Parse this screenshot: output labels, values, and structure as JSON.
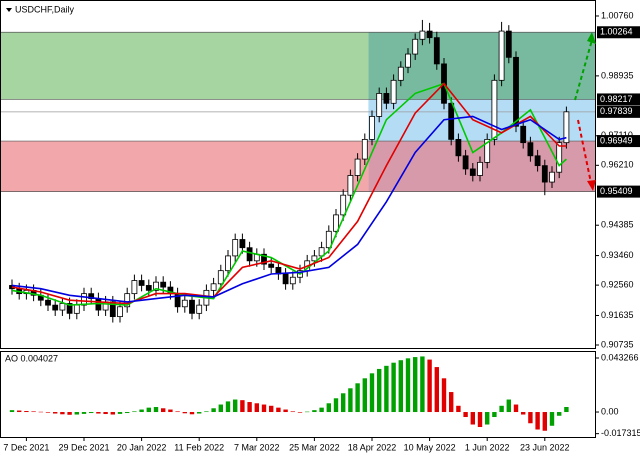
{
  "chart_data": [
    {
      "type": "candlestick",
      "title": "USDCHF,Daily",
      "categories": [
        null,
        null,
        "7 Dec 2021",
        null,
        null,
        null,
        null,
        null,
        null,
        null,
        "29 Dec 2021",
        null,
        null,
        null,
        null,
        null,
        null,
        null,
        "20 Jan 2022",
        null,
        null,
        null,
        null,
        null,
        null,
        null,
        "11 Feb 2022",
        null,
        null,
        null,
        null,
        null,
        null,
        null,
        "7 Mar 2022",
        null,
        null,
        null,
        null,
        null,
        null,
        null,
        "25 Mar 2022",
        null,
        null,
        null,
        null,
        null,
        null,
        null,
        "18 Apr 2022",
        null,
        null,
        null,
        null,
        null,
        null,
        null,
        "10 May 2022",
        null,
        null,
        null,
        null,
        null,
        null,
        null,
        "1 Jun 2022",
        null,
        null,
        null,
        null,
        null,
        null,
        null,
        "23 Jun 2022",
        null,
        null,
        null
      ],
      "open": [
        0.9255,
        0.9245,
        0.923,
        0.924,
        0.9225,
        0.921,
        0.9195,
        0.918,
        0.92,
        0.917,
        0.9195,
        0.923,
        0.9215,
        0.918,
        0.9205,
        0.916,
        0.919,
        0.923,
        0.927,
        0.9255,
        0.924,
        0.9265,
        0.925,
        0.923,
        0.919,
        0.921,
        0.917,
        0.9195,
        0.924,
        0.926,
        0.93,
        0.9345,
        0.9395,
        0.937,
        0.933,
        0.935,
        0.932,
        0.931,
        0.929,
        0.926,
        0.928,
        0.93,
        0.933,
        0.9345,
        0.937,
        0.942,
        0.947,
        0.953,
        0.959,
        0.964,
        0.97,
        0.977,
        0.984,
        0.981,
        0.988,
        0.992,
        0.996,
        1.0005,
        1.003,
        1.001,
        0.993,
        0.981,
        0.97,
        0.965,
        0.961,
        0.959,
        0.963,
        0.97,
        0.988,
        1.003,
        0.995,
        0.974,
        0.969,
        0.965,
        0.962,
        0.957,
        0.96,
        0.969
      ],
      "high": [
        0.9273,
        0.9263,
        0.9258,
        0.9258,
        0.9243,
        0.9228,
        0.9213,
        0.9218,
        0.9218,
        0.9213,
        0.9248,
        0.9248,
        0.9233,
        0.9223,
        0.9223,
        0.9208,
        0.9248,
        0.9288,
        0.9288,
        0.9273,
        0.9283,
        0.9283,
        0.9268,
        0.9248,
        0.9228,
        0.9228,
        0.9213,
        0.9258,
        0.9278,
        0.9318,
        0.9363,
        0.9413,
        0.9413,
        0.9388,
        0.9368,
        0.9368,
        0.9338,
        0.9328,
        0.9308,
        0.9298,
        0.9318,
        0.9348,
        0.9363,
        0.9388,
        0.9438,
        0.9488,
        0.9548,
        0.9608,
        0.9658,
        0.9718,
        0.9788,
        0.9858,
        0.9858,
        0.9898,
        0.9938,
        0.9978,
        1.0023,
        1.0064,
        1.0055,
        1.0028,
        0.9948,
        0.9828,
        0.9718,
        0.9668,
        0.9628,
        0.9648,
        0.9718,
        0.9898,
        1.0058,
        1.0048,
        0.9968,
        0.9758,
        0.9708,
        0.9668,
        0.9638,
        0.9618,
        0.9708,
        0.98
      ],
      "low": [
        0.9227,
        0.9212,
        0.9212,
        0.9207,
        0.9192,
        0.9177,
        0.9162,
        0.9162,
        0.9152,
        0.9152,
        0.9177,
        0.9197,
        0.9162,
        0.9162,
        0.9142,
        0.9142,
        0.9172,
        0.9212,
        0.9237,
        0.9222,
        0.9222,
        0.9232,
        0.9212,
        0.9172,
        0.9172,
        0.9152,
        0.9152,
        0.9177,
        0.9222,
        0.9242,
        0.9282,
        0.9327,
        0.9352,
        0.9312,
        0.9312,
        0.9302,
        0.9292,
        0.9272,
        0.9242,
        0.9242,
        0.9262,
        0.9282,
        0.9312,
        0.9327,
        0.9352,
        0.9402,
        0.9452,
        0.9512,
        0.9572,
        0.9622,
        0.9682,
        0.9752,
        0.9792,
        0.9792,
        0.9862,
        0.9902,
        0.9942,
        0.9987,
        0.9992,
        0.9912,
        0.9792,
        0.9682,
        0.9632,
        0.9592,
        0.9572,
        0.9572,
        0.9612,
        0.9682,
        0.9862,
        0.9932,
        0.9722,
        0.9672,
        0.9632,
        0.9602,
        0.953,
        0.9552,
        0.9582,
        0.9672
      ],
      "close": [
        0.9245,
        0.923,
        0.924,
        0.9225,
        0.921,
        0.9195,
        0.918,
        0.92,
        0.917,
        0.9195,
        0.923,
        0.9215,
        0.918,
        0.9205,
        0.916,
        0.919,
        0.923,
        0.927,
        0.9255,
        0.924,
        0.9265,
        0.925,
        0.923,
        0.919,
        0.921,
        0.917,
        0.9195,
        0.924,
        0.926,
        0.93,
        0.9345,
        0.9395,
        0.937,
        0.933,
        0.935,
        0.932,
        0.931,
        0.929,
        0.926,
        0.928,
        0.93,
        0.933,
        0.9345,
        0.937,
        0.942,
        0.947,
        0.953,
        0.959,
        0.964,
        0.97,
        0.977,
        0.984,
        0.981,
        0.988,
        0.992,
        0.996,
        1.0005,
        1.003,
        1.001,
        0.993,
        0.981,
        0.97,
        0.965,
        0.961,
        0.959,
        0.963,
        0.97,
        0.988,
        1.003,
        0.995,
        0.974,
        0.969,
        0.965,
        0.962,
        0.957,
        0.96,
        0.969,
        0.9784
      ],
      "series": [
        {
          "color": "#00c800",
          "x": [
            0,
            4,
            8,
            12,
            16,
            20,
            24,
            28,
            32,
            36,
            40,
            44,
            48,
            52,
            56,
            60,
            64,
            68,
            72,
            76,
            77
          ],
          "values": [
            0.924,
            0.9225,
            0.9195,
            0.92,
            0.9195,
            0.9245,
            0.9225,
            0.9215,
            0.936,
            0.934,
            0.929,
            0.936,
            0.956,
            0.976,
            0.984,
            0.987,
            0.966,
            0.972,
            0.979,
            0.962,
            0.964
          ]
        },
        {
          "color": "#e00000",
          "x": [
            0,
            4,
            8,
            12,
            16,
            20,
            24,
            28,
            32,
            36,
            40,
            44,
            48,
            52,
            56,
            60,
            64,
            68,
            72,
            76,
            77
          ],
          "values": [
            0.925,
            0.9235,
            0.921,
            0.9205,
            0.92,
            0.923,
            0.923,
            0.922,
            0.931,
            0.933,
            0.9305,
            0.934,
            0.945,
            0.962,
            0.978,
            0.987,
            0.976,
            0.972,
            0.977,
            0.968,
            0.968
          ]
        },
        {
          "color": "#0000e0",
          "x": [
            0,
            4,
            8,
            12,
            16,
            20,
            24,
            28,
            32,
            36,
            40,
            44,
            48,
            52,
            56,
            60,
            64,
            68,
            72,
            76,
            77
          ],
          "values": [
            0.9255,
            0.9245,
            0.9225,
            0.9215,
            0.9205,
            0.9215,
            0.9225,
            0.922,
            0.926,
            0.929,
            0.9295,
            0.931,
            0.938,
            0.951,
            0.966,
            0.976,
            0.977,
            0.973,
            0.976,
            0.97,
            0.9705
          ]
        }
      ],
      "ylim": [
        0.90644,
        1.01247
      ],
      "yticks": [
        {
          "value": 1.0076,
          "label": "1.00760"
        },
        {
          "value": 0.98935,
          "label": "0.98935"
        },
        {
          "value": 0.9711,
          "label": "0.97110"
        },
        {
          "value": 0.9621,
          "label": "0.96210"
        },
        {
          "value": 0.94385,
          "label": "0.94385"
        },
        {
          "value": 0.9346,
          "label": "0.93460"
        },
        {
          "value": 0.9256,
          "label": "0.92560"
        },
        {
          "value": 0.91635,
          "label": "0.91635"
        },
        {
          "value": 0.90735,
          "label": "0.90735"
        }
      ],
      "levels": [
        {
          "value": 1.00264,
          "label": "1.00264"
        },
        {
          "value": 0.98217,
          "label": "0.98217"
        },
        {
          "value": 0.97839,
          "label": "0.97839"
        },
        {
          "value": 0.96949,
          "label": "0.96949"
        },
        {
          "value": 0.95409,
          "label": "0.95409"
        }
      ]
    },
    {
      "type": "bar",
      "title": "AO 0.004027",
      "values": [
        0.0015,
        0.0012,
        0.0008,
        0.0005,
        0.0002,
        -0.0005,
        -0.0012,
        -0.0018,
        -0.0022,
        -0.002,
        -0.0015,
        -0.0008,
        -0.0012,
        -0.0016,
        -0.002,
        -0.0015,
        -0.0008,
        0.0005,
        0.002,
        0.0035,
        0.004,
        0.003,
        0.002,
        0.0005,
        -0.001,
        -0.0018,
        -0.0012,
        0.0005,
        0.003,
        0.006,
        0.0085,
        0.01,
        0.0095,
        0.008,
        0.007,
        0.006,
        0.005,
        0.0035,
        0.002,
        0.0005,
        -0.0005,
        0.0003,
        0.0015,
        0.0035,
        0.007,
        0.011,
        0.015,
        0.019,
        0.023,
        0.027,
        0.031,
        0.0345,
        0.037,
        0.0395,
        0.0415,
        0.043,
        0.044,
        0.0445,
        0.042,
        0.036,
        0.027,
        0.016,
        0.005,
        -0.004,
        -0.01,
        -0.012,
        -0.01,
        -0.004,
        0.005,
        0.01,
        0.006,
        -0.002,
        -0.009,
        -0.014,
        -0.015,
        -0.011,
        -0.003,
        0.004027
      ],
      "up_color": "#00a000",
      "down_color": "#e00000",
      "ylim": [
        -0.02,
        0.04807
      ],
      "yticks": [
        0.043266,
        {
          "value": 0,
          "label": "0.00"
        },
        -0.017315
      ]
    }
  ]
}
